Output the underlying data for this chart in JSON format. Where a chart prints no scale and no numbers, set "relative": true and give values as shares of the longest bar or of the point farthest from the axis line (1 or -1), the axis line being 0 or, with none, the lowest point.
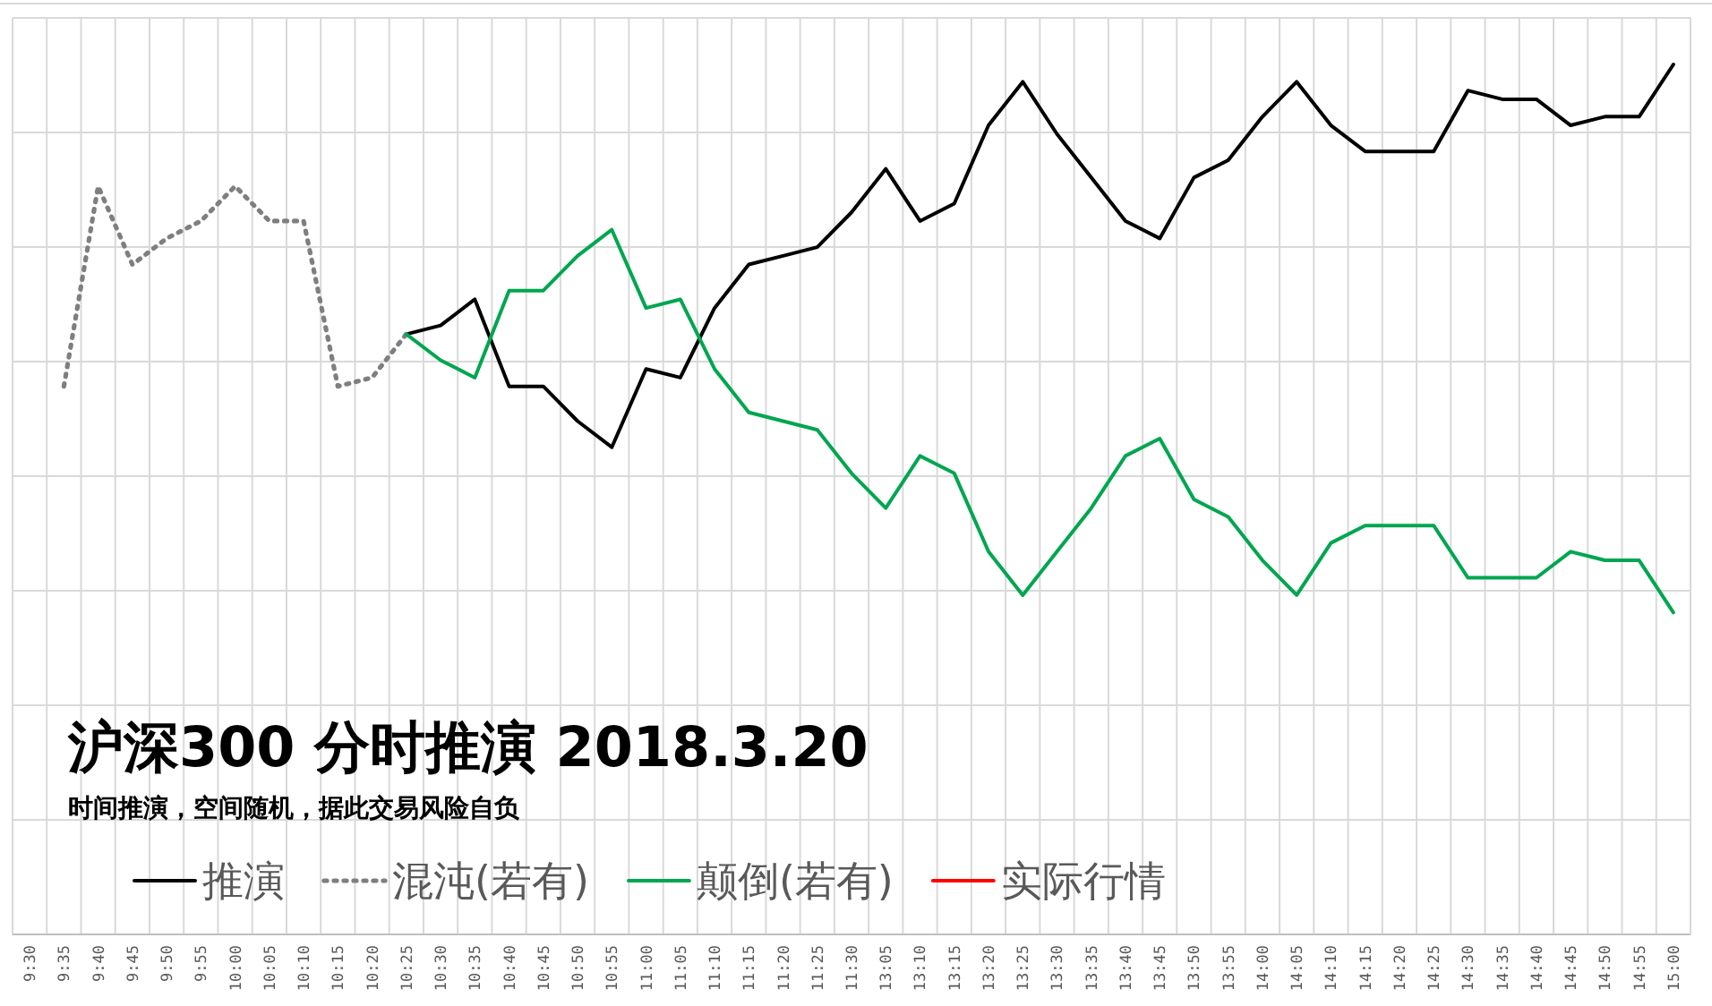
{
  "chart_data": {
    "type": "line",
    "title": "沪深300 分时推演 2018.3.20",
    "subtitle": "时间推演，空间随机，据此交易风险自负",
    "categories": [
      "9:30",
      "9:35",
      "9:40",
      "9:45",
      "9:50",
      "9:55",
      "10:00",
      "10:05",
      "10:10",
      "10:15",
      "10:20",
      "10:25",
      "10:30",
      "10:35",
      "10:40",
      "10:45",
      "10:50",
      "10:55",
      "11:00",
      "11:05",
      "11:10",
      "11:15",
      "11:20",
      "11:25",
      "11:30",
      "13:05",
      "13:10",
      "13:15",
      "13:20",
      "13:25",
      "13:30",
      "13:35",
      "13:40",
      "13:45",
      "13:50",
      "13:55",
      "14:00",
      "14:05",
      "14:10",
      "14:15",
      "14:20",
      "14:25",
      "14:30",
      "14:35",
      "14:40",
      "14:45",
      "14:50",
      "14:55",
      "15:00"
    ],
    "relative": true,
    "grid": true,
    "legend": "bottom left",
    "series": [
      {
        "name": "推演",
        "color": "#000000",
        "line_style": "solid",
        "values": [
          null,
          null,
          null,
          null,
          null,
          null,
          null,
          null,
          null,
          null,
          null,
          0.69,
          0.7,
          0.73,
          0.63,
          0.63,
          0.59,
          0.56,
          0.65,
          0.64,
          0.72,
          0.77,
          0.78,
          0.79,
          0.83,
          0.88,
          0.82,
          0.84,
          0.93,
          0.98,
          0.92,
          0.87,
          0.82,
          0.8,
          0.87,
          0.89,
          0.94,
          0.98,
          0.93,
          0.9,
          0.9,
          0.9,
          0.97,
          0.96,
          0.96,
          0.93,
          0.94,
          0.94,
          1
        ]
      },
      {
        "name": "混沌(若有)",
        "color": "#7f7f7f",
        "line_style": "dotted",
        "values": [
          null,
          0.63,
          0.86,
          0.77,
          0.8,
          0.82,
          0.86,
          0.82,
          0.82,
          0.63,
          0.64,
          0.69,
          null,
          null,
          null,
          null,
          null,
          null,
          null,
          null,
          null,
          null,
          null,
          null,
          null,
          null,
          null,
          null,
          null,
          null,
          null,
          null,
          null,
          null,
          null,
          null,
          null,
          null,
          null,
          null,
          null,
          null,
          null,
          null,
          null,
          null,
          null,
          null,
          null
        ]
      },
      {
        "name": "颠倒(若有)",
        "color": "#00a650",
        "line_style": "solid",
        "values": [
          null,
          null,
          null,
          null,
          null,
          null,
          null,
          null,
          null,
          null,
          null,
          0.69,
          0.66,
          0.64,
          0.74,
          0.74,
          0.78,
          0.81,
          0.72,
          0.73,
          0.65,
          0.6,
          0.59,
          0.58,
          0.53,
          0.49,
          0.55,
          0.53,
          0.44,
          0.39,
          0.44,
          0.49,
          0.55,
          0.57,
          0.5,
          0.48,
          0.43,
          0.39,
          0.45,
          0.47,
          0.47,
          0.47,
          0.41,
          0.41,
          0.41,
          0.44,
          0.43,
          0.43,
          0.37
        ]
      },
      {
        "name": "实际行情",
        "color": "#ff0000",
        "line_style": "solid",
        "values": [
          null,
          null,
          null,
          null,
          null,
          null,
          null,
          null,
          null,
          null,
          null,
          null,
          null,
          null,
          null,
          null,
          null,
          null,
          null,
          null,
          null,
          null,
          null,
          null,
          null,
          null,
          null,
          null,
          null,
          null,
          null,
          null,
          null,
          null,
          null,
          null,
          null,
          null,
          null,
          null,
          null,
          null,
          null,
          null,
          null,
          null,
          null,
          null,
          null
        ]
      }
    ]
  }
}
